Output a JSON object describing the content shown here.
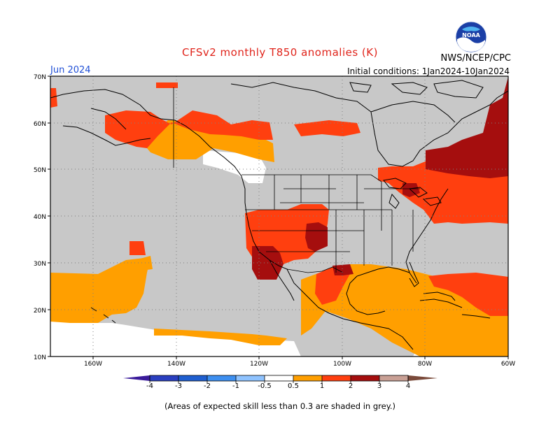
{
  "title": "CFSv2 monthly T850 anomalies (K)",
  "month_label": "Jun 2024",
  "agency": "NWS/NCEP/CPC",
  "initial_conditions": "Initial conditions: 1Jan2024-10Jan2024",
  "footnote": "(Areas of expected skill less than 0.3 are shaded in grey.)",
  "logo_text": "NOAA",
  "lat_labels": [
    "70N",
    "60N",
    "50N",
    "40N",
    "30N",
    "20N",
    "10N"
  ],
  "lon_labels": [
    "160W",
    "140W",
    "120W",
    "100W",
    "80W",
    "60W"
  ],
  "colors": {
    "grey_mask": "#c8c8c8",
    "bin_0_5_1": "#ff9f00",
    "bin_1_2": "#ff3f0f",
    "bin_2_3": "#a50e0e",
    "bin_3_4": "#c9a095",
    "bin_gt4": "#7a4a3a",
    "neg_0_5_1": "#8fc3ff",
    "neg_1_2": "#3d8ff0",
    "neg_2_3": "#1f5fd0",
    "neg_3_4": "#2a3fc0",
    "neg_lt4": "#3a1a9a",
    "title_color": "#e0241b",
    "month_color": "#1f4fd6"
  },
  "colorbar": {
    "labels": [
      "-4",
      "-3",
      "-2",
      "-1",
      "-0.5",
      "0.5",
      "1",
      "2",
      "3",
      "4"
    ]
  },
  "map_data": {
    "projection": "lat-lon",
    "lon_range": [
      -170,
      -60
    ],
    "lat_range": [
      10,
      70
    ],
    "anomaly_regions": [
      {
        "region": "Southwest US / northern Mexico",
        "category": "2-3 K"
      },
      {
        "region": "Western US interior",
        "category": "1-2 K"
      },
      {
        "region": "Northeast US / eastern Canada",
        "category": "1-2 K, locally 2-3 K"
      },
      {
        "region": "Alaska / western Canada coast",
        "category": "0.5-2 K"
      },
      {
        "region": "Gulf of Mexico / Caribbean",
        "category": "0.5-1 K"
      },
      {
        "region": "Subtropical eastern Pacific",
        "category": "0.5-1 K"
      }
    ]
  }
}
